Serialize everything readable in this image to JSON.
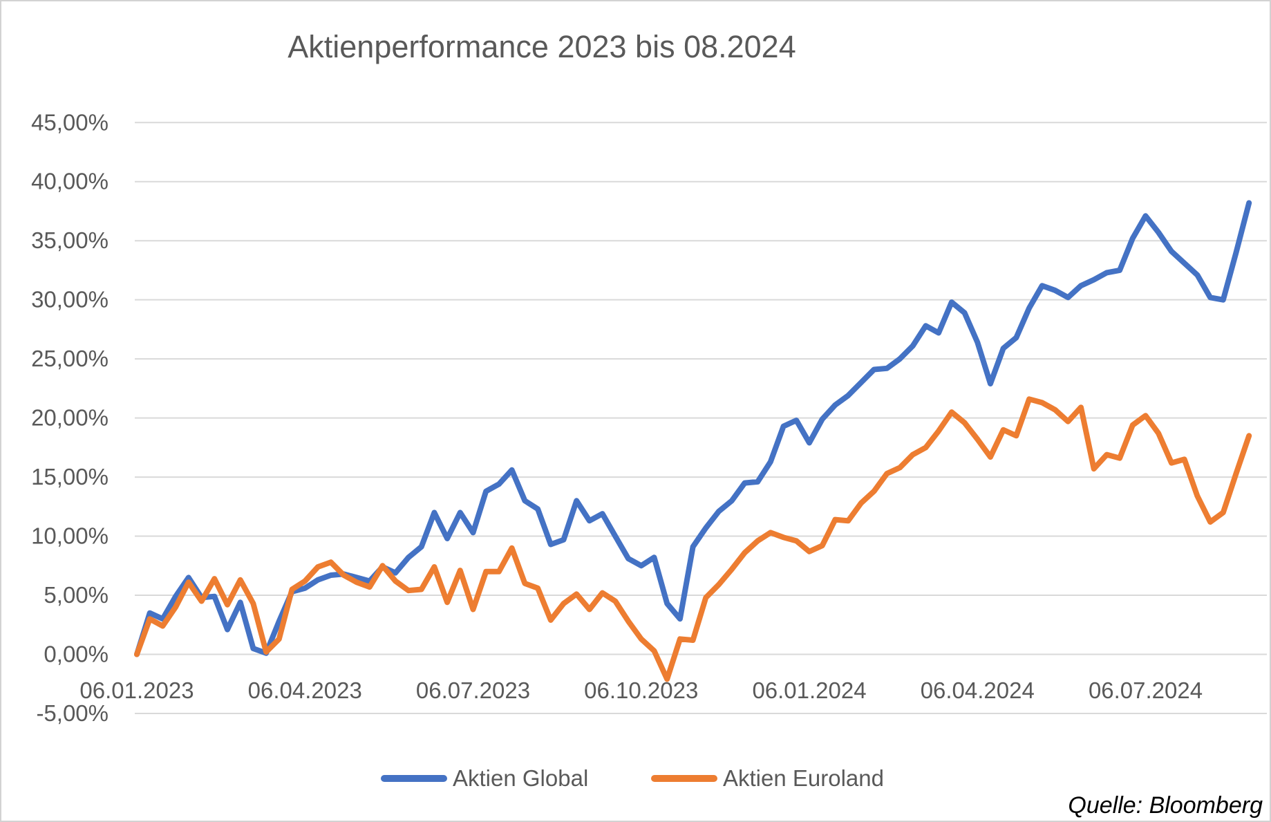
{
  "title": "Aktienperformance 2023 bis 08.2024",
  "source_note": "Quelle: Bloomberg",
  "colors": {
    "series_global": "#4472C4",
    "series_euroland": "#ED7D31",
    "gridline": "#D9D9D9",
    "axis_text": "#595959",
    "title_text": "#595959",
    "source_text": "#000000",
    "background": "#FFFFFF"
  },
  "chart_data": {
    "type": "line",
    "title": "Aktienperformance 2023 bis 08.2024",
    "xlabel": "",
    "ylabel": "",
    "ylim": [
      -5,
      45
    ],
    "grid": "horizontal",
    "legend_position": "bottom",
    "value_unit": "percent",
    "yticks": {
      "values": [
        45,
        40,
        35,
        30,
        25,
        20,
        15,
        10,
        5,
        0,
        -5
      ],
      "labels": [
        "45,00%",
        "40,00%",
        "35,00%",
        "30,00%",
        "25,00%",
        "20,00%",
        "15,00%",
        "10,00%",
        "5,00%",
        "0,00%",
        "-5,00%"
      ]
    },
    "xticks": {
      "indices": [
        0,
        13,
        26,
        39,
        52,
        65,
        78
      ],
      "labels": [
        "06.01.2023",
        "06.04.2023",
        "06.07.2023",
        "06.10.2023",
        "06.01.2024",
        "06.04.2024",
        "06.07.2024"
      ]
    },
    "x": [
      "06.01.2023",
      "13.01.2023",
      "20.01.2023",
      "27.01.2023",
      "03.02.2023",
      "10.02.2023",
      "17.02.2023",
      "24.02.2023",
      "03.03.2023",
      "10.03.2023",
      "17.03.2023",
      "24.03.2023",
      "31.03.2023",
      "07.04.2023",
      "14.04.2023",
      "21.04.2023",
      "28.04.2023",
      "05.05.2023",
      "12.05.2023",
      "19.05.2023",
      "26.05.2023",
      "02.06.2023",
      "09.06.2023",
      "16.06.2023",
      "23.06.2023",
      "30.06.2023",
      "07.07.2023",
      "14.07.2023",
      "21.07.2023",
      "28.07.2023",
      "04.08.2023",
      "11.08.2023",
      "18.08.2023",
      "25.08.2023",
      "01.09.2023",
      "08.09.2023",
      "15.09.2023",
      "22.09.2023",
      "29.09.2023",
      "06.10.2023",
      "13.10.2023",
      "20.10.2023",
      "27.10.2023",
      "03.11.2023",
      "10.11.2023",
      "17.11.2023",
      "24.11.2023",
      "01.12.2023",
      "08.12.2023",
      "15.12.2023",
      "22.12.2023",
      "29.12.2023",
      "05.01.2024",
      "12.01.2024",
      "19.01.2024",
      "26.01.2024",
      "02.02.2024",
      "09.02.2024",
      "16.02.2024",
      "23.02.2024",
      "01.03.2024",
      "08.03.2024",
      "15.03.2024",
      "22.03.2024",
      "29.03.2024",
      "05.04.2024",
      "12.04.2024",
      "19.04.2024",
      "26.04.2024",
      "03.05.2024",
      "10.05.2024",
      "17.05.2024",
      "24.05.2024",
      "31.05.2024",
      "07.06.2024",
      "14.06.2024",
      "21.06.2024",
      "28.06.2024",
      "05.07.2024",
      "12.07.2024",
      "19.07.2024",
      "26.07.2024",
      "02.08.2024",
      "09.08.2024",
      "16.08.2024",
      "23.08.2024",
      "30.08.2024"
    ],
    "series": [
      {
        "name": "Aktien Global",
        "color": "#4472C4",
        "values": [
          0.0,
          3.5,
          3.0,
          4.9,
          6.5,
          4.8,
          4.9,
          2.1,
          4.4,
          0.5,
          0.1,
          2.8,
          5.3,
          5.6,
          6.3,
          6.7,
          6.8,
          6.5,
          6.2,
          7.4,
          6.9,
          8.2,
          9.1,
          12.0,
          9.8,
          12.0,
          10.3,
          13.8,
          14.4,
          15.6,
          13.0,
          12.3,
          9.3,
          9.7,
          13.0,
          11.3,
          11.9,
          10.0,
          8.1,
          7.5,
          8.2,
          4.3,
          3.0,
          9.1,
          10.7,
          12.1,
          13.0,
          14.5,
          14.6,
          16.3,
          19.3,
          19.8,
          17.9,
          19.9,
          21.1,
          21.9,
          23.0,
          24.1,
          24.2,
          25.0,
          26.1,
          27.8,
          27.2,
          29.8,
          28.9,
          26.4,
          22.9,
          25.9,
          26.8,
          29.3,
          31.2,
          30.8,
          30.2,
          31.2,
          31.7,
          32.3,
          32.5,
          35.2,
          37.1,
          35.7,
          34.1,
          33.1,
          32.1,
          30.2,
          30.0,
          34.0,
          38.2
        ]
      },
      {
        "name": "Aktien Euroland",
        "color": "#ED7D31",
        "values": [
          0.0,
          3.0,
          2.4,
          4.0,
          6.1,
          4.5,
          6.4,
          4.2,
          6.3,
          4.3,
          0.2,
          1.3,
          5.5,
          6.2,
          7.4,
          7.8,
          6.7,
          6.1,
          5.7,
          7.5,
          6.2,
          5.4,
          5.5,
          7.4,
          4.4,
          7.1,
          3.8,
          7.0,
          7.0,
          9.0,
          6.0,
          5.6,
          2.9,
          4.3,
          5.1,
          3.8,
          5.2,
          4.5,
          2.8,
          1.3,
          0.3,
          -2.1,
          1.3,
          1.2,
          4.8,
          5.9,
          7.2,
          8.6,
          9.6,
          10.3,
          9.9,
          9.6,
          8.7,
          9.2,
          11.4,
          11.3,
          12.8,
          13.8,
          15.3,
          15.8,
          16.9,
          17.5,
          18.9,
          20.5,
          19.6,
          18.2,
          16.7,
          19.0,
          18.5,
          21.6,
          21.3,
          20.7,
          19.7,
          20.9,
          15.7,
          16.9,
          16.6,
          19.4,
          20.2,
          18.7,
          16.2,
          16.5,
          13.4,
          11.2,
          12.0,
          15.3,
          18.5
        ]
      }
    ]
  }
}
